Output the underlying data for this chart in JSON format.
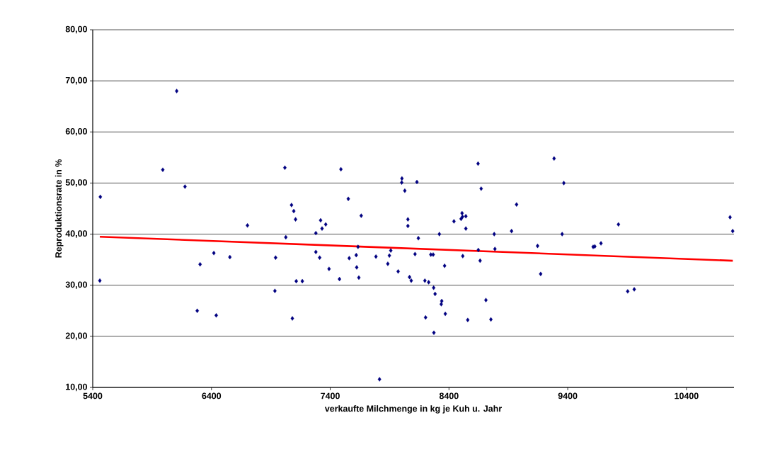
{
  "chart_data": {
    "type": "scatter",
    "xlabel": "verkaufte Milchmenge in kg je Kuh u. Jahr",
    "ylabel": "Reproduktionsrate in %",
    "xlim": [
      5400,
      10800
    ],
    "ylim": [
      10,
      80
    ],
    "xticks": [
      5400,
      6400,
      7400,
      8400,
      9400,
      10400
    ],
    "yticks": [
      {
        "value": 10,
        "label": "10,00"
      },
      {
        "value": 20,
        "label": "20,00"
      },
      {
        "value": 30,
        "label": "30,00"
      },
      {
        "value": 40,
        "label": "40,00"
      },
      {
        "value": 50,
        "label": "50,00"
      },
      {
        "value": 60,
        "label": "60,00"
      },
      {
        "value": 70,
        "label": "70,00"
      },
      {
        "value": 80,
        "label": "80,00"
      }
    ],
    "grid": "y",
    "legend": false,
    "series": [
      {
        "marker": "diamond",
        "color": "#000080",
        "x": [
          5464,
          5460,
          5990,
          6107,
          6177,
          6703,
          7018,
          7074,
          7093,
          7108,
          7026,
          6420,
          6555,
          6304,
          6940,
          7114,
          7165,
          6934,
          6280,
          6440,
          7081,
          7279,
          7279,
          7319,
          7331,
          7362,
          7311,
          7390,
          7490,
          7478,
          7552,
          7560,
          7619,
          7634,
          7623,
          7641,
          7661,
          7785,
          7815,
          7885,
          7898,
          7910,
          7972,
          8004,
          8002,
          8028,
          8054,
          8054,
          8068,
          8082,
          8114,
          8130,
          8142,
          8197,
          8229,
          8203,
          8247,
          8267,
          8271,
          8283,
          8319,
          8339,
          8335,
          8363,
          8369,
          8273,
          8442,
          8502,
          8510,
          8514,
          8542,
          8542,
          8516,
          8558,
          8645,
          8671,
          8647,
          8662,
          8711,
          8753,
          8781,
          8787,
          8927,
          8969,
          9285,
          9367,
          9353,
          9146,
          9172,
          9614,
          9628,
          9680,
          9827,
          9905,
          9960,
          10767,
          10789
        ],
        "values": [
          47.3,
          30.9,
          52.6,
          68.0,
          49.3,
          41.7,
          53.0,
          45.7,
          44.5,
          42.9,
          39.4,
          36.3,
          35.5,
          34.1,
          35.4,
          30.8,
          30.8,
          28.9,
          25.0,
          24.1,
          23.5,
          40.2,
          36.5,
          42.7,
          41.1,
          41.9,
          35.4,
          33.2,
          52.7,
          31.2,
          46.9,
          35.3,
          35.9,
          37.5,
          33.5,
          31.5,
          43.6,
          35.6,
          11.6,
          34.2,
          35.8,
          36.8,
          32.7,
          50.9,
          50.1,
          48.5,
          42.9,
          41.6,
          31.6,
          30.9,
          36.1,
          50.2,
          39.2,
          30.9,
          30.6,
          23.7,
          36.0,
          36.0,
          29.5,
          28.3,
          40.0,
          26.9,
          26.3,
          33.8,
          24.4,
          20.7,
          42.5,
          43.0,
          44.1,
          43.4,
          43.5,
          41.1,
          35.7,
          23.2,
          53.8,
          48.9,
          36.9,
          34.8,
          27.1,
          23.3,
          40.0,
          37.1,
          40.6,
          45.8,
          54.8,
          50.0,
          40.0,
          37.7,
          32.2,
          37.5,
          37.6,
          38.2,
          41.9,
          28.8,
          29.2,
          43.3,
          40.6
        ]
      },
      {
        "type": "line",
        "marker": "none",
        "color": "#ff0000",
        "x": [
          5460,
          10790
        ],
        "values": [
          39.5,
          34.8
        ]
      }
    ]
  }
}
